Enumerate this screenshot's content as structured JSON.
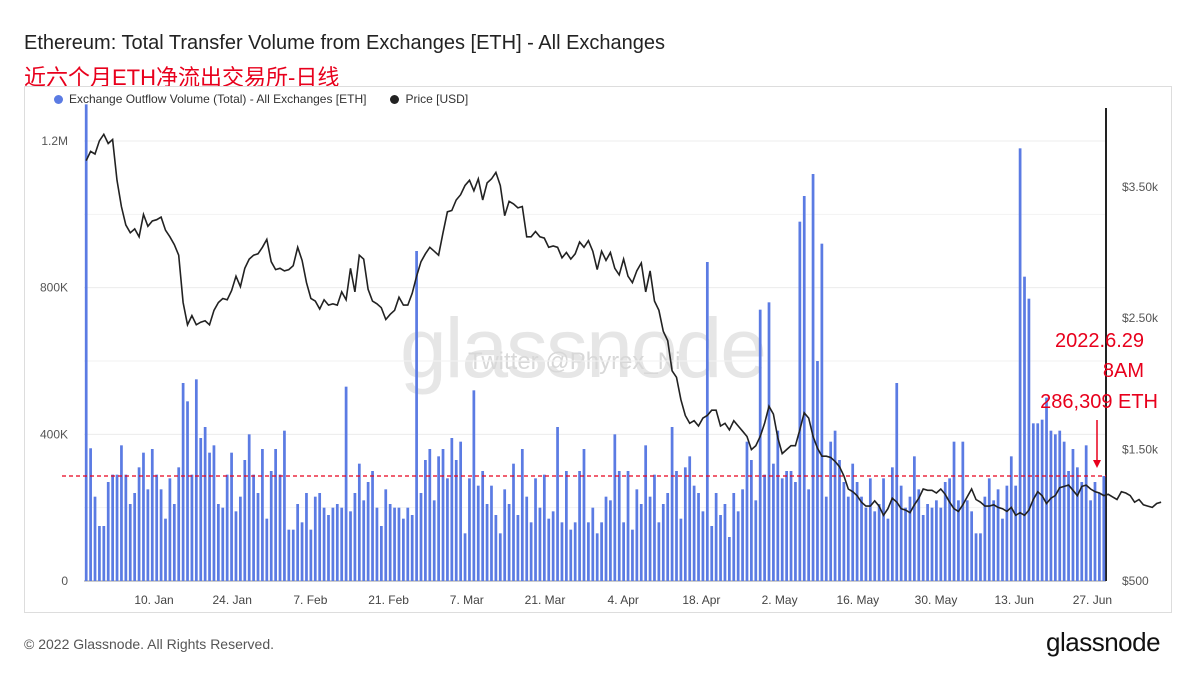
{
  "title": "Ethereum: Total Transfer Volume from Exchanges [ETH] - All Exchanges",
  "subtitle": "近六个月ETH净流出交易所-日线",
  "legend": [
    {
      "label": "Exchange Outflow Volume (Total) - All Exchanges [ETH]",
      "color": "#5b7be3"
    },
    {
      "label": "Price [USD]",
      "color": "#222222"
    }
  ],
  "watermark": "glassnode",
  "watermark_sub": "Twitter @Phyrex_Ni",
  "annotation": {
    "date": "2022.6.29",
    "time": "8AM",
    "value": "286,309 ETH",
    "reference_value": 286309,
    "color": "#e8001c"
  },
  "footer": {
    "copyright": "© 2022 Glassnode. All Rights Reserved.",
    "logo": "glassnode"
  },
  "chart_data": {
    "type": "bar",
    "x_ticks": [
      "10. Jan",
      "24. Jan",
      "7. Feb",
      "21. Feb",
      "7. Mar",
      "21. Mar",
      "4. Apr",
      "18. Apr",
      "2. May",
      "16. May",
      "30. May",
      "13. Jun",
      "27. Jun"
    ],
    "left_axis": {
      "ticks": [
        "0",
        "400K",
        "800K",
        "1.2M"
      ],
      "ylim": [
        0,
        1290000
      ]
    },
    "right_axis": {
      "ticks": [
        "$500",
        "$1.50k",
        "$2.50k",
        "$3.50k"
      ],
      "ylim": [
        500,
        4100
      ]
    },
    "series": [
      {
        "name": "Exchange Outflow Volume (Total) - All Exchanges [ETH]",
        "type": "bar",
        "color": "#5b7be3",
        "values": [
          1300000,
          362000,
          230000,
          150000,
          150000,
          270000,
          290000,
          290000,
          370000,
          290000,
          210000,
          240000,
          310000,
          350000,
          250000,
          360000,
          290000,
          250000,
          170000,
          280000,
          210000,
          310000,
          540000,
          490000,
          290000,
          550000,
          390000,
          420000,
          350000,
          370000,
          210000,
          200000,
          290000,
          350000,
          190000,
          230000,
          330000,
          400000,
          290000,
          240000,
          360000,
          170000,
          300000,
          360000,
          290000,
          410000,
          140000,
          140000,
          210000,
          160000,
          240000,
          140000,
          230000,
          240000,
          200000,
          180000,
          200000,
          210000,
          200000,
          530000,
          190000,
          240000,
          320000,
          220000,
          270000,
          300000,
          200000,
          150000,
          250000,
          210000,
          200000,
          200000,
          170000,
          200000,
          180000,
          900000,
          240000,
          330000,
          360000,
          220000,
          340000,
          360000,
          280000,
          390000,
          330000,
          380000,
          130000,
          280000,
          520000,
          260000,
          300000,
          210000,
          260000,
          180000,
          130000,
          250000,
          210000,
          320000,
          180000,
          360000,
          230000,
          160000,
          280000,
          200000,
          290000,
          170000,
          190000,
          420000,
          160000,
          300000,
          140000,
          160000,
          300000,
          360000,
          160000,
          200000,
          130000,
          160000,
          230000,
          220000,
          400000,
          300000,
          160000,
          300000,
          140000,
          250000,
          210000,
          370000,
          230000,
          290000,
          160000,
          210000,
          240000,
          420000,
          300000,
          170000,
          310000,
          340000,
          260000,
          240000,
          190000,
          870000,
          150000,
          240000,
          180000,
          210000,
          120000,
          240000,
          190000,
          250000,
          380000,
          330000,
          220000,
          740000,
          290000,
          760000,
          320000,
          410000,
          280000,
          300000,
          300000,
          270000,
          980000,
          1050000,
          250000,
          1110000,
          600000,
          920000,
          230000,
          380000,
          410000,
          330000,
          270000,
          230000,
          320000,
          270000,
          230000,
          200000,
          280000,
          190000,
          210000,
          280000,
          170000,
          310000,
          540000,
          260000,
          200000,
          230000,
          340000,
          250000,
          180000,
          210000,
          200000,
          220000,
          200000,
          270000,
          280000,
          380000,
          220000,
          380000,
          220000,
          190000,
          130000,
          130000,
          230000,
          280000,
          220000,
          250000,
          170000,
          260000,
          340000,
          260000,
          1180000,
          830000,
          770000,
          430000,
          430000,
          440000,
          500000,
          410000,
          400000,
          410000,
          380000,
          300000,
          360000,
          310000,
          270000,
          370000,
          220000,
          270000,
          240000,
          286309
        ]
      },
      {
        "name": "Price [USD]",
        "type": "line",
        "color": "#222222",
        "values": [
          3700,
          3770,
          3750,
          3850,
          3900,
          3830,
          3860,
          3550,
          3350,
          3210,
          3150,
          3180,
          3120,
          3290,
          3200,
          3240,
          3250,
          3270,
          3170,
          3120,
          3060,
          2980,
          2620,
          2450,
          2520,
          2450,
          2470,
          2480,
          2450,
          2560,
          2620,
          2650,
          2640,
          2710,
          2820,
          2740,
          2880,
          2950,
          2980,
          2990,
          3040,
          3100,
          2930,
          2870,
          2880,
          2860,
          2870,
          2900,
          3040,
          2940,
          2770,
          2650,
          2630,
          2570,
          2640,
          2600,
          2610,
          2600,
          2700,
          2640,
          2880,
          2700,
          2980,
          2950,
          2720,
          2630,
          2610,
          2580,
          2490,
          2530,
          2560,
          2660,
          2600,
          2600,
          2690,
          2820,
          2930,
          2990,
          3040,
          3010,
          2980,
          3150,
          3310,
          3320,
          3400,
          3440,
          3510,
          3550,
          3470,
          3560,
          3400,
          3530,
          3560,
          3610,
          3510,
          3280,
          3390,
          3370,
          3340,
          3350,
          3120,
          3120,
          3160,
          3120,
          3110,
          3040,
          3050,
          3040,
          2960,
          3000,
          2950,
          2990,
          3080,
          3040,
          3090,
          3010,
          2870,
          3010,
          2940,
          3000,
          2880,
          2830,
          2950,
          2820,
          2770,
          2860,
          2920,
          2700,
          2860,
          2630,
          2560,
          2400,
          2330,
          2100,
          2050,
          1880,
          1760,
          1700,
          1720,
          1680,
          1740,
          1760,
          1800,
          1800,
          1680,
          1700,
          1650,
          1720,
          1680,
          1640,
          1600,
          1500,
          1530,
          1600,
          1700,
          1830,
          1770,
          1590,
          1470,
          1500,
          1530,
          1530,
          1650,
          1780,
          1740,
          1600,
          1510,
          1450,
          1450,
          1440,
          1410,
          1370,
          1300,
          1200,
          1180,
          1150,
          1100,
          1070,
          1070,
          1110,
          1070,
          1000,
          1050,
          1130,
          1100,
          1050,
          1040,
          1020,
          1080,
          1130,
          1200,
          1190,
          1190,
          1170,
          1200,
          1160,
          1100,
          1050,
          1030,
          1080,
          1140,
          1200,
          1120,
          1100,
          1070,
          1070,
          1080,
          1060,
          1050,
          1030,
          1060,
          1000,
          1020,
          1000,
          1040,
          1120,
          1180,
          1150,
          1090,
          1130,
          1150,
          1210,
          1220,
          1230,
          1190,
          1150,
          1220,
          1230,
          1200,
          1180,
          1170,
          1150,
          1160,
          1140,
          1120,
          1180,
          1170,
          1150,
          1100,
          1120,
          1080,
          1070,
          1060,
          1090,
          1100
        ]
      }
    ],
    "reference_line": {
      "value": 286309,
      "style": "dashed",
      "color": "#e8001c"
    }
  }
}
